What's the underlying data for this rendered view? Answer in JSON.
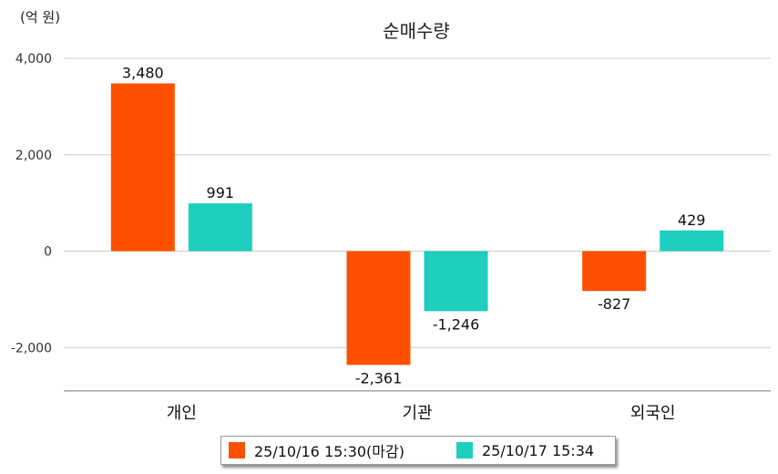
{
  "unit_label": "(억 원)",
  "colors": {
    "series0": "#ff5000",
    "series1": "#1ecebf",
    "grid": "#cccccc",
    "axis": "#777777"
  },
  "chart_data": {
    "type": "bar",
    "title": "순매수량",
    "xlabel": "",
    "ylabel": "",
    "categories": [
      "개인",
      "기관",
      "외국인"
    ],
    "series": [
      {
        "name": "25/10/16 15:30(마감)",
        "values": [
          3480,
          -2361,
          -827
        ],
        "labels": [
          "3,480",
          "-2,361",
          "-827"
        ]
      },
      {
        "name": "25/10/17 15:34",
        "values": [
          991,
          -1246,
          429
        ],
        "labels": [
          "991",
          "-1,246",
          "429"
        ]
      }
    ],
    "ylim": [
      -2900,
      4000
    ],
    "yticks": [
      4000,
      2000,
      0,
      -2000
    ],
    "ytick_labels": [
      "4,000",
      "2,000",
      "0",
      "-2,000"
    ],
    "grid": true,
    "legend_position": "bottom"
  }
}
